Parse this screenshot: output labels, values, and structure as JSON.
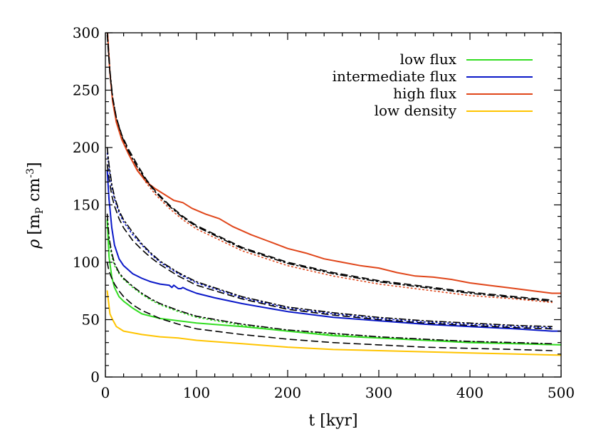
{
  "chart_data": {
    "type": "line",
    "xlabel": "t [kyr]",
    "ylabel": "ρ [m_P cm^-3]",
    "ylabel_parts": {
      "rho": "ρ",
      "open": "[m",
      "sub": "P",
      "unit": "cm",
      "sup": "-3",
      "close": "]"
    },
    "xlim": [
      0,
      500
    ],
    "ylim": [
      0,
      300
    ],
    "x_ticks": [
      0,
      100,
      200,
      300,
      400,
      500
    ],
    "y_ticks": [
      0,
      50,
      100,
      150,
      200,
      250,
      300
    ],
    "grid": false,
    "legend_position": "top-right",
    "series": [
      {
        "name": "low flux",
        "color": "#33dd22",
        "style": "solid",
        "points": [
          [
            2,
            137
          ],
          [
            4,
            105
          ],
          [
            7,
            87
          ],
          [
            10,
            78
          ],
          [
            15,
            70
          ],
          [
            20,
            66
          ],
          [
            30,
            60
          ],
          [
            40,
            55
          ],
          [
            60,
            51
          ],
          [
            80,
            49
          ],
          [
            100,
            47
          ],
          [
            150,
            44
          ],
          [
            200,
            40
          ],
          [
            250,
            36
          ],
          [
            300,
            34
          ],
          [
            350,
            32
          ],
          [
            400,
            30
          ],
          [
            450,
            29
          ],
          [
            500,
            28
          ]
        ]
      },
      {
        "name": "intermediate flux",
        "color": "#0a18c8",
        "style": "solid",
        "points": [
          [
            2,
            180
          ],
          [
            4,
            155
          ],
          [
            7,
            130
          ],
          [
            10,
            115
          ],
          [
            15,
            103
          ],
          [
            20,
            97
          ],
          [
            30,
            90
          ],
          [
            40,
            86
          ],
          [
            50,
            83
          ],
          [
            60,
            81
          ],
          [
            70,
            80
          ],
          [
            73,
            78
          ],
          [
            75,
            80
          ],
          [
            80,
            77
          ],
          [
            83,
            77
          ],
          [
            85,
            78
          ],
          [
            90,
            76
          ],
          [
            100,
            73
          ],
          [
            120,
            69
          ],
          [
            150,
            64
          ],
          [
            200,
            57
          ],
          [
            250,
            52
          ],
          [
            300,
            49
          ],
          [
            350,
            46
          ],
          [
            400,
            44
          ],
          [
            450,
            42
          ],
          [
            490,
            40
          ],
          [
            500,
            40
          ]
        ]
      },
      {
        "name": "high flux",
        "color": "#e0461a",
        "style": "solid",
        "points": [
          [
            2,
            305
          ],
          [
            5,
            265
          ],
          [
            8,
            240
          ],
          [
            12,
            222
          ],
          [
            18,
            207
          ],
          [
            25,
            195
          ],
          [
            35,
            180
          ],
          [
            45,
            170
          ],
          [
            55,
            164
          ],
          [
            65,
            159
          ],
          [
            75,
            154
          ],
          [
            85,
            152
          ],
          [
            95,
            147
          ],
          [
            110,
            142
          ],
          [
            125,
            138
          ],
          [
            140,
            131
          ],
          [
            160,
            124
          ],
          [
            180,
            118
          ],
          [
            200,
            112
          ],
          [
            220,
            108
          ],
          [
            240,
            103
          ],
          [
            260,
            100
          ],
          [
            280,
            97
          ],
          [
            300,
            95
          ],
          [
            320,
            91
          ],
          [
            340,
            88
          ],
          [
            360,
            87
          ],
          [
            380,
            85
          ],
          [
            400,
            82
          ],
          [
            420,
            80
          ],
          [
            440,
            78
          ],
          [
            460,
            76
          ],
          [
            480,
            74
          ],
          [
            490,
            73
          ],
          [
            500,
            73
          ]
        ]
      },
      {
        "name": "low density",
        "color": "#ffc400",
        "style": "solid",
        "points": [
          [
            2,
            75
          ],
          [
            5,
            55
          ],
          [
            8,
            50
          ],
          [
            12,
            44
          ],
          [
            20,
            40
          ],
          [
            40,
            37
          ],
          [
            60,
            35
          ],
          [
            80,
            34
          ],
          [
            100,
            32
          ],
          [
            150,
            29
          ],
          [
            200,
            26
          ],
          [
            250,
            24
          ],
          [
            300,
            23
          ],
          [
            350,
            22
          ],
          [
            400,
            21
          ],
          [
            450,
            20
          ],
          [
            500,
            19
          ]
        ]
      },
      {
        "color": "#33dd22",
        "style": "dotted",
        "points": [
          [
            2,
            137
          ],
          [
            4,
            118
          ],
          [
            7,
            105
          ],
          [
            10,
            97
          ],
          [
            15,
            90
          ],
          [
            20,
            85
          ],
          [
            30,
            78
          ],
          [
            40,
            72
          ],
          [
            50,
            67
          ],
          [
            60,
            63
          ],
          [
            80,
            57
          ],
          [
            100,
            52
          ],
          [
            150,
            45
          ],
          [
            200,
            40
          ],
          [
            250,
            37
          ],
          [
            300,
            34
          ],
          [
            350,
            32
          ],
          [
            400,
            31
          ],
          [
            450,
            29
          ],
          [
            500,
            28
          ]
        ]
      },
      {
        "color": "#000000",
        "style": "dashdot",
        "points": [
          [
            2,
            142
          ],
          [
            4,
            122
          ],
          [
            7,
            108
          ],
          [
            10,
            99
          ],
          [
            15,
            91
          ],
          [
            20,
            86
          ],
          [
            30,
            79
          ],
          [
            40,
            73
          ],
          [
            50,
            68
          ],
          [
            60,
            64
          ],
          [
            80,
            58
          ],
          [
            100,
            53
          ],
          [
            150,
            46
          ],
          [
            200,
            41
          ],
          [
            250,
            38
          ],
          [
            300,
            35
          ],
          [
            350,
            33
          ],
          [
            400,
            31
          ],
          [
            450,
            30
          ],
          [
            490,
            29
          ]
        ]
      },
      {
        "color": "#000000",
        "style": "dashed",
        "points": [
          [
            2,
            100
          ],
          [
            4,
            92
          ],
          [
            7,
            86
          ],
          [
            10,
            81
          ],
          [
            15,
            75
          ],
          [
            20,
            70
          ],
          [
            30,
            63
          ],
          [
            40,
            58
          ],
          [
            60,
            51
          ],
          [
            80,
            46
          ],
          [
            100,
            42
          ],
          [
            150,
            37
          ],
          [
            200,
            33
          ],
          [
            250,
            30
          ],
          [
            300,
            28
          ],
          [
            350,
            26
          ],
          [
            400,
            25
          ],
          [
            450,
            24
          ],
          [
            490,
            23
          ]
        ]
      },
      {
        "color": "#0a18c8",
        "style": "dotted",
        "points": [
          [
            2,
            195
          ],
          [
            4,
            182
          ],
          [
            7,
            165
          ],
          [
            10,
            155
          ],
          [
            15,
            143
          ],
          [
            20,
            135
          ],
          [
            30,
            124
          ],
          [
            40,
            115
          ],
          [
            50,
            107
          ],
          [
            60,
            100
          ],
          [
            70,
            95
          ],
          [
            80,
            90
          ],
          [
            100,
            82
          ],
          [
            150,
            69
          ],
          [
            200,
            60
          ],
          [
            250,
            55
          ],
          [
            300,
            51
          ],
          [
            350,
            48
          ],
          [
            400,
            46
          ],
          [
            450,
            44
          ],
          [
            490,
            43
          ]
        ]
      },
      {
        "color": "#000000",
        "style": "dashdot",
        "points": [
          [
            2,
            200
          ],
          [
            4,
            185
          ],
          [
            7,
            168
          ],
          [
            10,
            157
          ],
          [
            15,
            145
          ],
          [
            20,
            137
          ],
          [
            30,
            126
          ],
          [
            40,
            116
          ],
          [
            50,
            108
          ],
          [
            60,
            101
          ],
          [
            70,
            96
          ],
          [
            80,
            91
          ],
          [
            100,
            83
          ],
          [
            150,
            70
          ],
          [
            200,
            61
          ],
          [
            250,
            56
          ],
          [
            300,
            52
          ],
          [
            350,
            49
          ],
          [
            400,
            47
          ],
          [
            450,
            45
          ],
          [
            490,
            44
          ]
        ]
      },
      {
        "color": "#000000",
        "style": "dashed",
        "points": [
          [
            2,
            185
          ],
          [
            4,
            173
          ],
          [
            7,
            158
          ],
          [
            10,
            149
          ],
          [
            15,
            138
          ],
          [
            20,
            130
          ],
          [
            30,
            119
          ],
          [
            40,
            111
          ],
          [
            50,
            104
          ],
          [
            60,
            98
          ],
          [
            70,
            93
          ],
          [
            80,
            88
          ],
          [
            100,
            80
          ],
          [
            150,
            68
          ],
          [
            200,
            59
          ],
          [
            250,
            54
          ],
          [
            300,
            50
          ],
          [
            350,
            47
          ],
          [
            400,
            45
          ],
          [
            450,
            43
          ],
          [
            490,
            42
          ]
        ]
      },
      {
        "color": "#e0461a",
        "style": "dotted",
        "points": [
          [
            2,
            300
          ],
          [
            5,
            265
          ],
          [
            8,
            242
          ],
          [
            12,
            224
          ],
          [
            18,
            208
          ],
          [
            25,
            195
          ],
          [
            35,
            181
          ],
          [
            45,
            169
          ],
          [
            55,
            159
          ],
          [
            70,
            147
          ],
          [
            85,
            137
          ],
          [
            100,
            129
          ],
          [
            150,
            110
          ],
          [
            200,
            97
          ],
          [
            250,
            88
          ],
          [
            300,
            81
          ],
          [
            350,
            76
          ],
          [
            400,
            71
          ],
          [
            450,
            68
          ],
          [
            490,
            65
          ]
        ]
      },
      {
        "color": "#000000",
        "style": "dashdot",
        "points": [
          [
            2,
            302
          ],
          [
            5,
            267
          ],
          [
            8,
            244
          ],
          [
            12,
            226
          ],
          [
            18,
            210
          ],
          [
            25,
            197
          ],
          [
            35,
            183
          ],
          [
            45,
            171
          ],
          [
            55,
            161
          ],
          [
            70,
            149
          ],
          [
            85,
            139
          ],
          [
            100,
            131
          ],
          [
            150,
            112
          ],
          [
            200,
            99
          ],
          [
            250,
            90
          ],
          [
            300,
            83
          ],
          [
            350,
            78
          ],
          [
            400,
            73
          ],
          [
            450,
            69
          ],
          [
            490,
            66
          ]
        ]
      },
      {
        "color": "#000000",
        "style": "dashed",
        "points": [
          [
            2,
            298
          ],
          [
            5,
            264
          ],
          [
            8,
            243
          ],
          [
            12,
            226
          ],
          [
            18,
            211
          ],
          [
            25,
            199
          ],
          [
            35,
            185
          ],
          [
            45,
            172
          ],
          [
            55,
            162
          ],
          [
            70,
            150
          ],
          [
            85,
            140
          ],
          [
            100,
            132
          ],
          [
            150,
            113
          ],
          [
            200,
            100
          ],
          [
            250,
            91
          ],
          [
            300,
            84
          ],
          [
            350,
            79
          ],
          [
            400,
            74
          ],
          [
            450,
            70
          ],
          [
            490,
            67
          ]
        ]
      }
    ]
  }
}
